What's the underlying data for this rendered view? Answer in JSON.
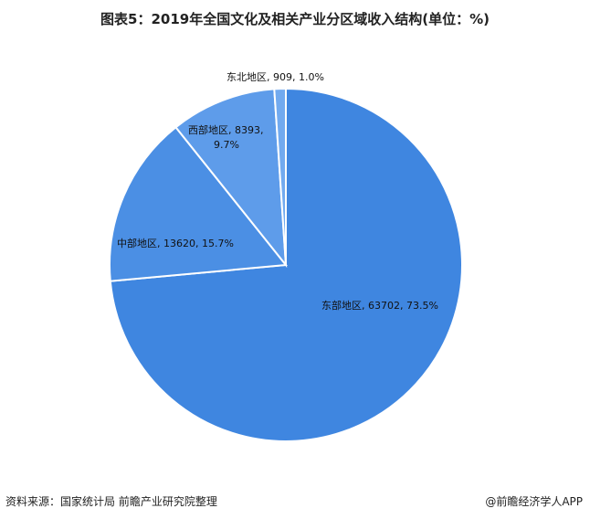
{
  "chart_data": {
    "type": "pie",
    "title": "图表5：2019年全国文化及相关产业分区域收入结构(单位：%)",
    "categories": [
      "东部地区",
      "中部地区",
      "西部地区",
      "东北地区"
    ],
    "values": [
      63702,
      13620,
      8393,
      909
    ],
    "percents": [
      "73.5%",
      "15.7%",
      "9.7%",
      "1.0%"
    ],
    "colors": [
      "#3f86e0",
      "#4b8fe4",
      "#5e9cea",
      "#72aaef"
    ],
    "labels": [
      {
        "lines": [
          "东部地区, 63702, 73.5%"
        ]
      },
      {
        "lines": [
          "中部地区, 13620, 15.7%"
        ]
      },
      {
        "lines": [
          "西部地区, 8393,",
          "9.7%"
        ]
      },
      {
        "lines": [
          "东北地区, 909, 1.0%"
        ]
      }
    ]
  },
  "footer": {
    "source": "资料来源：国家统计局 前瞻产业研究院整理",
    "brand": "@前瞻经济学人APP"
  }
}
